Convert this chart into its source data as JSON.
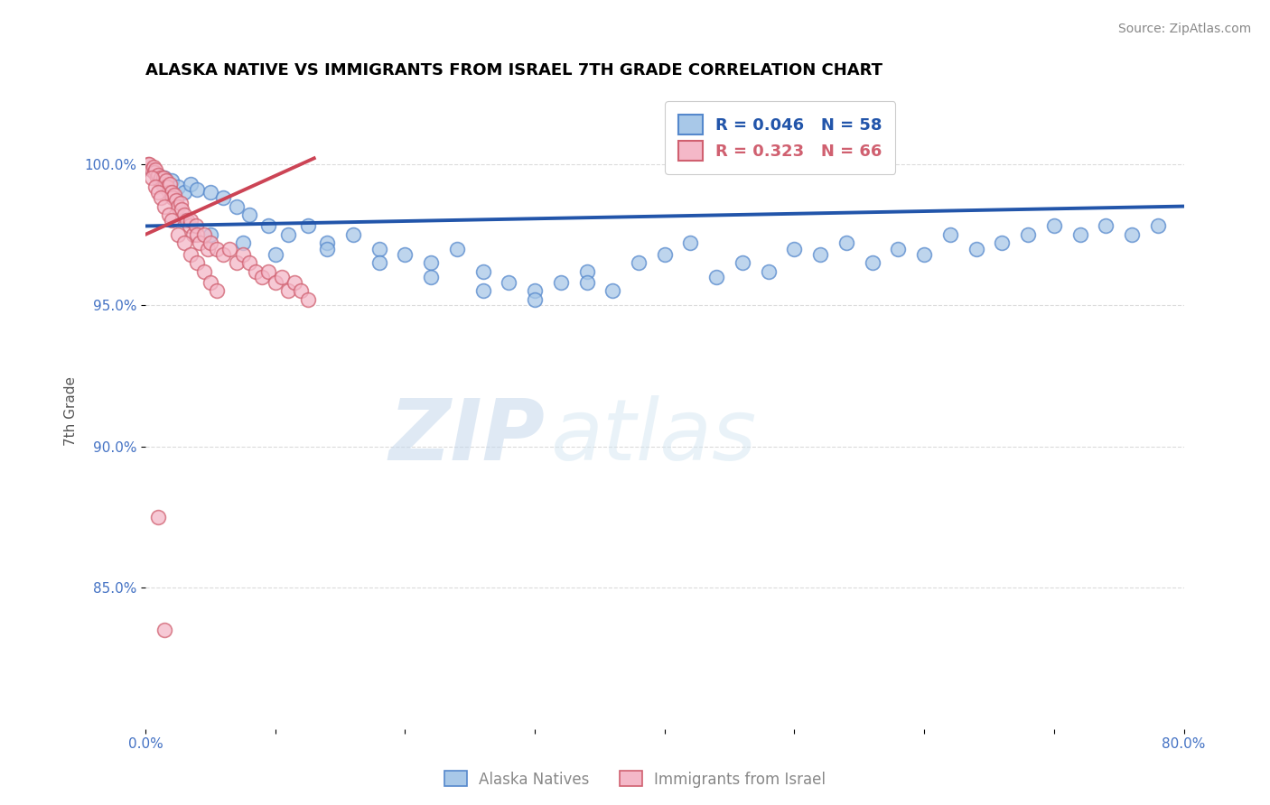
{
  "title": "ALASKA NATIVE VS IMMIGRANTS FROM ISRAEL 7TH GRADE CORRELATION CHART",
  "source": "Source: ZipAtlas.com",
  "ylabel_label": "7th Grade",
  "xlim": [
    0.0,
    80.0
  ],
  "ylim": [
    80.0,
    102.5
  ],
  "legend_r1": "R = 0.046",
  "legend_n1": "N = 58",
  "legend_r2": "R = 0.323",
  "legend_n2": "N = 66",
  "blue_color": "#a8c8e8",
  "pink_color": "#f4b8c8",
  "blue_edge_color": "#5588cc",
  "pink_edge_color": "#d06070",
  "blue_line_color": "#2255aa",
  "pink_line_color": "#cc4455",
  "watermark_zip": "ZIP",
  "watermark_atlas": "atlas",
  "blue_scatter_x": [
    0.5,
    1.0,
    1.5,
    2.0,
    2.5,
    3.0,
    3.5,
    4.0,
    5.0,
    6.0,
    7.0,
    8.0,
    9.5,
    11.0,
    12.5,
    14.0,
    16.0,
    18.0,
    20.0,
    22.0,
    24.0,
    26.0,
    28.0,
    30.0,
    32.0,
    34.0,
    36.0,
    38.0,
    40.0,
    42.0,
    44.0,
    46.0,
    48.0,
    50.0,
    52.0,
    54.0,
    56.0,
    58.0,
    60.0,
    62.0,
    64.0,
    66.0,
    68.0,
    70.0,
    72.0,
    74.0,
    76.0,
    78.0,
    3.0,
    5.0,
    7.5,
    10.0,
    14.0,
    18.0,
    22.0,
    26.0,
    30.0,
    34.0
  ],
  "blue_scatter_y": [
    99.8,
    99.6,
    99.5,
    99.4,
    99.2,
    99.0,
    99.3,
    99.1,
    99.0,
    98.8,
    98.5,
    98.2,
    97.8,
    97.5,
    97.8,
    97.2,
    97.5,
    97.0,
    96.8,
    96.5,
    97.0,
    96.2,
    95.8,
    95.5,
    95.8,
    96.2,
    95.5,
    96.5,
    96.8,
    97.2,
    96.0,
    96.5,
    96.2,
    97.0,
    96.8,
    97.2,
    96.5,
    97.0,
    96.8,
    97.5,
    97.0,
    97.2,
    97.5,
    97.8,
    97.5,
    97.8,
    97.5,
    97.8,
    98.0,
    97.5,
    97.2,
    96.8,
    97.0,
    96.5,
    96.0,
    95.5,
    95.2,
    95.8
  ],
  "pink_scatter_x": [
    0.2,
    0.3,
    0.5,
    0.6,
    0.7,
    0.8,
    0.9,
    1.0,
    1.1,
    1.2,
    1.3,
    1.4,
    1.5,
    1.6,
    1.7,
    1.8,
    1.9,
    2.0,
    2.1,
    2.2,
    2.4,
    2.5,
    2.7,
    2.8,
    3.0,
    3.2,
    3.4,
    3.5,
    3.7,
    3.9,
    4.0,
    4.2,
    4.5,
    4.8,
    5.0,
    5.5,
    6.0,
    6.5,
    7.0,
    7.5,
    8.0,
    8.5,
    9.0,
    9.5,
    10.0,
    10.5,
    11.0,
    11.5,
    12.0,
    12.5,
    0.5,
    0.8,
    1.0,
    1.2,
    1.5,
    1.8,
    2.0,
    2.5,
    3.0,
    3.5,
    4.0,
    4.5,
    5.0,
    5.5,
    1.0,
    1.5
  ],
  "pink_scatter_y": [
    100.0,
    100.0,
    99.8,
    99.9,
    99.7,
    99.8,
    99.5,
    99.6,
    99.4,
    99.5,
    99.3,
    99.5,
    99.2,
    99.4,
    99.2,
    99.0,
    99.3,
    99.0,
    98.8,
    98.9,
    98.7,
    98.5,
    98.6,
    98.4,
    98.2,
    98.0,
    97.8,
    98.0,
    97.5,
    97.8,
    97.5,
    97.2,
    97.5,
    97.0,
    97.2,
    97.0,
    96.8,
    97.0,
    96.5,
    96.8,
    96.5,
    96.2,
    96.0,
    96.2,
    95.8,
    96.0,
    95.5,
    95.8,
    95.5,
    95.2,
    99.5,
    99.2,
    99.0,
    98.8,
    98.5,
    98.2,
    98.0,
    97.5,
    97.2,
    96.8,
    96.5,
    96.2,
    95.8,
    95.5,
    87.5,
    83.5
  ],
  "blue_trendline_x": [
    0.0,
    80.0
  ],
  "blue_trendline_y": [
    97.8,
    98.5
  ],
  "pink_trendline_x": [
    0.0,
    13.0
  ],
  "pink_trendline_y": [
    97.5,
    100.2
  ]
}
